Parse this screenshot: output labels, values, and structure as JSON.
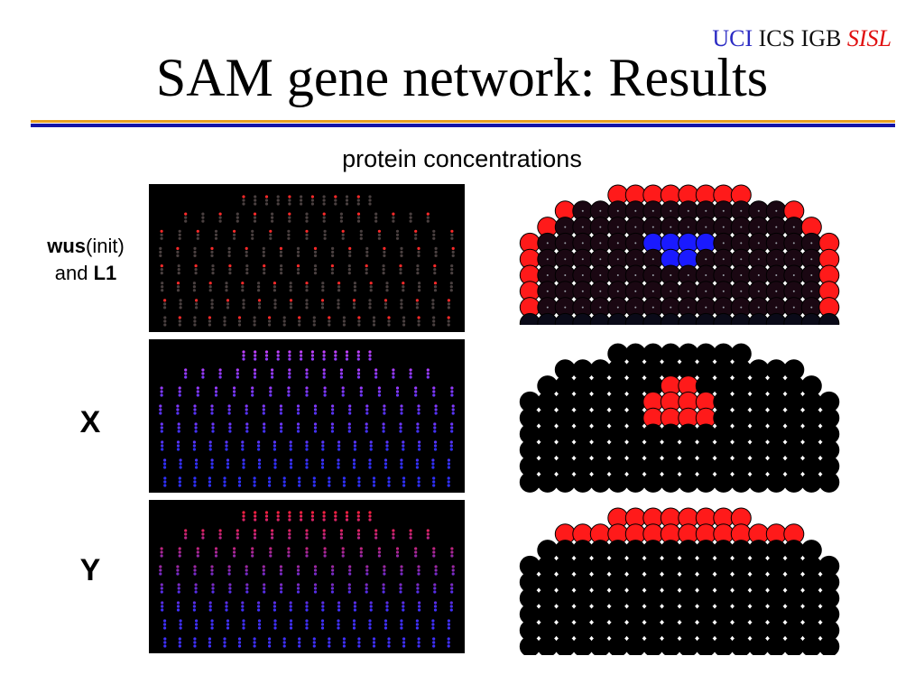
{
  "header": {
    "branding": {
      "uci": "UCI",
      "ics_igb": "ICS IGB",
      "sisl": "SISL",
      "colors": {
        "uci": "#2b2bc4",
        "sisl": "#e01010"
      }
    },
    "title": "SAM gene network: Results",
    "rule_colors": {
      "top": "#e8a020",
      "bottom": "#1414a6"
    }
  },
  "figure": {
    "subtitle": "protein concentrations",
    "rows": [
      {
        "label_bold_1": "wus",
        "label_text_1": "(init)",
        "label_text_2": "and ",
        "label_bold_2": "L1",
        "scheme": "wus_l1"
      },
      {
        "label": "X",
        "scheme": "x"
      },
      {
        "label": "Y",
        "scheme": "y"
      }
    ],
    "colors": {
      "red": "#ff1a1a",
      "blue": "#1a1aff",
      "purple": "#8a1a9e",
      "dark": "#1a0712",
      "panel_bg": "#000000"
    }
  }
}
